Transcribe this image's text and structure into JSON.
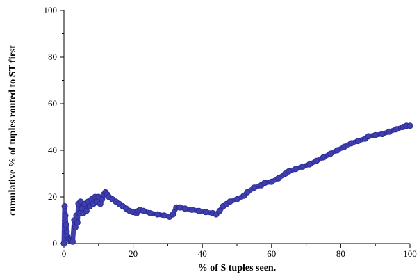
{
  "chart_data": {
    "type": "line",
    "title": "",
    "xlabel": "% of S tuples seen.",
    "ylabel": "cumulative % of tuples routed to ST first",
    "xlim": [
      0,
      100
    ],
    "ylim": [
      0,
      100
    ],
    "x_ticks": [
      "0",
      "20",
      "40",
      "60",
      "80",
      "100"
    ],
    "y_ticks": [
      "0",
      "20",
      "40",
      "60",
      "80",
      "100"
    ],
    "grid": false,
    "legend": "none",
    "series": [
      {
        "color": "#3f3fb0",
        "marker": "circle",
        "x": [
          0,
          0.2,
          0.4,
          0.6,
          0.8,
          1.0,
          1.3,
          1.6,
          2.0,
          2.5,
          3.0,
          3.3,
          3.6,
          3.9,
          4.2,
          4.5,
          4.8,
          5.2,
          5.6,
          6.0,
          6.5,
          7.0,
          7.5,
          8.0,
          8.5,
          9.0,
          9.5,
          10.0,
          10.5,
          11.0,
          11.5,
          12.0,
          12.5,
          13.0,
          14.0,
          15.0,
          16.0,
          17.0,
          18.0,
          19.0,
          20.0,
          21.0,
          21.5,
          22.0,
          23.0,
          25.0,
          27.0,
          29.0,
          30.5,
          31.5,
          32.5,
          33.5,
          35.0,
          37.0,
          39.0,
          41.0,
          43.0,
          44.0,
          45.0,
          46.0,
          47.0,
          48.0,
          50.0,
          52.0,
          53.0,
          55.0,
          57.0,
          58.0,
          60.0,
          62.0,
          64.0,
          65.0,
          67.0,
          69.0,
          71.0,
          73.0,
          75.0,
          77.0,
          79.0,
          81.0,
          83.0,
          85.0,
          87.0,
          88.0,
          90.0,
          92.0,
          94.0,
          96.0,
          98.0,
          99.0,
          100.0
        ],
        "y": [
          0,
          16,
          12,
          8,
          5,
          3,
          2,
          1.5,
          1,
          0.8,
          10,
          7,
          12,
          9,
          17,
          13,
          18,
          15,
          13,
          17,
          14,
          18,
          16,
          19,
          17,
          20,
          18,
          20,
          17,
          19,
          21,
          22,
          21,
          20,
          19,
          18,
          17,
          16,
          15,
          14,
          13.5,
          13,
          14,
          14.5,
          14,
          13,
          12.5,
          12,
          11.5,
          12.5,
          15.5,
          15.5,
          15,
          14.5,
          14,
          13.5,
          13,
          12.5,
          14,
          16,
          17,
          18,
          19,
          20.5,
          22,
          24,
          25,
          26,
          26.5,
          28,
          30,
          31,
          32,
          33,
          34,
          35.5,
          37,
          38.5,
          40,
          41.5,
          43,
          44,
          45,
          46,
          46.5,
          47,
          48,
          49,
          50,
          50.5,
          50.5
        ]
      }
    ]
  }
}
